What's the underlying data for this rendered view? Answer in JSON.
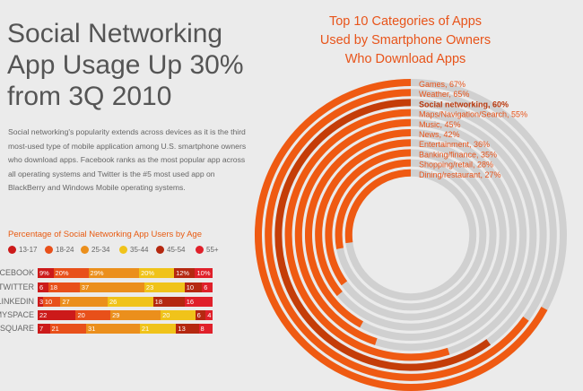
{
  "headline": {
    "line1": "Social Networking",
    "line2": "App Usage Up 30%",
    "line3": "from 3Q 2010"
  },
  "description": "Social networking's popularity extends across devices as it is the third most-used type of mobile application among U.S. smartphone owners who download apps. Facebook ranks as the most popular app across all operating systems and Twitter is the #5 most used app on BlackBerry and Windows Mobile operating systems.",
  "colors": {
    "background": "#ebebeb",
    "accent": "#e8541a",
    "ring_track": "#d0d0d0",
    "ring_fill": "#ef5a12",
    "ring_highlight": "#c43d08",
    "age_13_17": "#cc1a1a",
    "age_18_24": "#e8501a",
    "age_25_34": "#eb8f1c",
    "age_35_44": "#f0c31a",
    "age_45_54": "#b52810",
    "age_55_plus": "#e0202a"
  },
  "chart_data": [
    {
      "type": "radial-bar",
      "title": "Top 10 Categories of Apps Used by Smartphone Owners Who Download Apps",
      "title_lines": [
        "Top 10 Categories of Apps",
        "Used by Smartphone Owners",
        "Who Download Apps"
      ],
      "categories": [
        "Games",
        "Weather",
        "Social networking",
        "Maps/Navigation/Search",
        "Music",
        "News",
        "Entertainment",
        "Banking/finance",
        "Shopping/retail",
        "Dining/restaurant"
      ],
      "values": [
        67,
        65,
        60,
        55,
        45,
        42,
        36,
        35,
        28,
        27
      ],
      "labels": [
        "Games, 67%",
        "Weather, 65%",
        "Social networking, 60%",
        "Maps/Navigation/Search, 55%",
        "Music, 45%",
        "News, 42%",
        "Entertainment, 36%",
        "Banking/finance, 35%",
        "Shopping/retail, 28%",
        "Dining/restaurant, 27%"
      ],
      "highlight": "Social networking",
      "unit": "%"
    },
    {
      "type": "stacked-bar",
      "title": "Percentage of Social Networking App Users by Age",
      "series": [
        {
          "name": "13-17",
          "values": [
            9,
            6,
            3,
            22,
            7
          ]
        },
        {
          "name": "18-24",
          "values": [
            20,
            18,
            10,
            20,
            21
          ]
        },
        {
          "name": "25-34",
          "values": [
            29,
            37,
            27,
            29,
            31
          ]
        },
        {
          "name": "35-44",
          "values": [
            20,
            23,
            26,
            20,
            21
          ]
        },
        {
          "name": "45-54",
          "values": [
            12,
            10,
            18,
            6,
            13
          ]
        },
        {
          "name": "55+",
          "values": [
            10,
            6,
            16,
            4,
            8
          ]
        }
      ],
      "categories": [
        "FACEBOOK",
        "TWITTER",
        "LINKEDIN",
        "MYSPACE",
        "FOURSQUARE"
      ],
      "value_labels": [
        [
          "9%",
          "20%",
          "29%",
          "20%",
          "12%",
          "10%"
        ],
        [
          "6",
          "18",
          "37",
          "23",
          "10",
          "6"
        ],
        [
          "3",
          "10",
          "27",
          "26",
          "18",
          "16"
        ],
        [
          "22",
          "20",
          "29",
          "20",
          "6",
          "4"
        ],
        [
          "7",
          "21",
          "31",
          "21",
          "13",
          "8"
        ]
      ]
    }
  ]
}
